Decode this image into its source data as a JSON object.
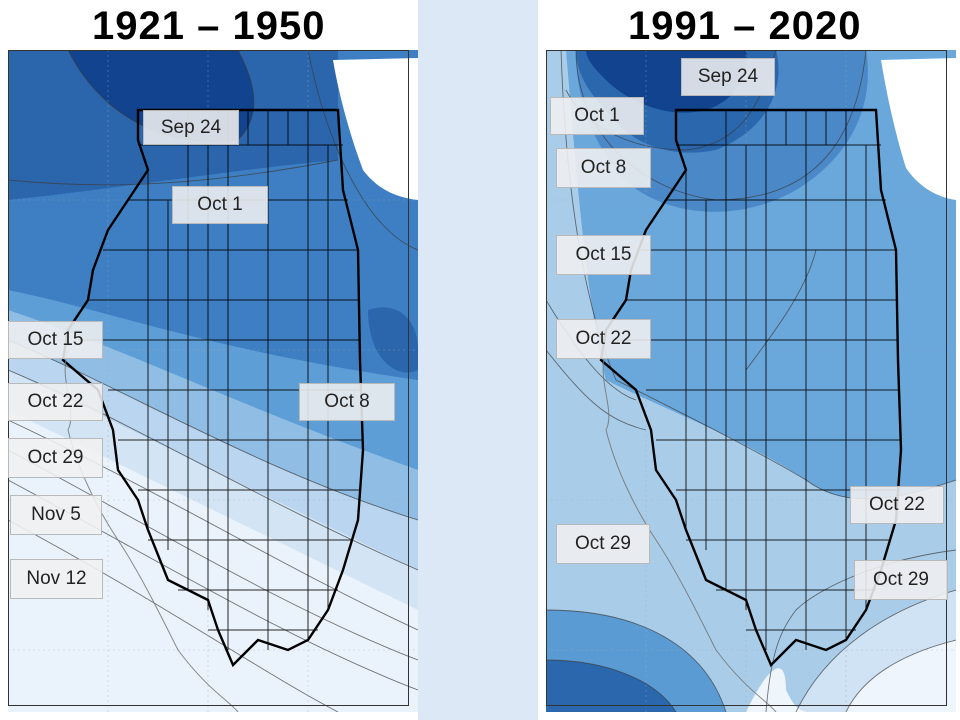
{
  "colors": {
    "divider": "#dce8f5",
    "frost_early": "#0b3b86",
    "frost_mid": "#4a8bc9",
    "frost_late": "#eef5fc",
    "lake": "#ffffff"
  },
  "left_map": {
    "title": "1921 – 1950",
    "labels": [
      "Sep 24",
      "Oct 1",
      "Oct 15",
      "Oct 22",
      "Oct 8",
      "Oct 29",
      "Nov 5",
      "Nov 12"
    ]
  },
  "right_map": {
    "title": "1991 – 2020",
    "labels": [
      "Sep 24",
      "Oct 1",
      "Oct 8",
      "Oct 15",
      "Oct 22",
      "Oct 22",
      "Oct 29",
      "Oct 29"
    ]
  }
}
